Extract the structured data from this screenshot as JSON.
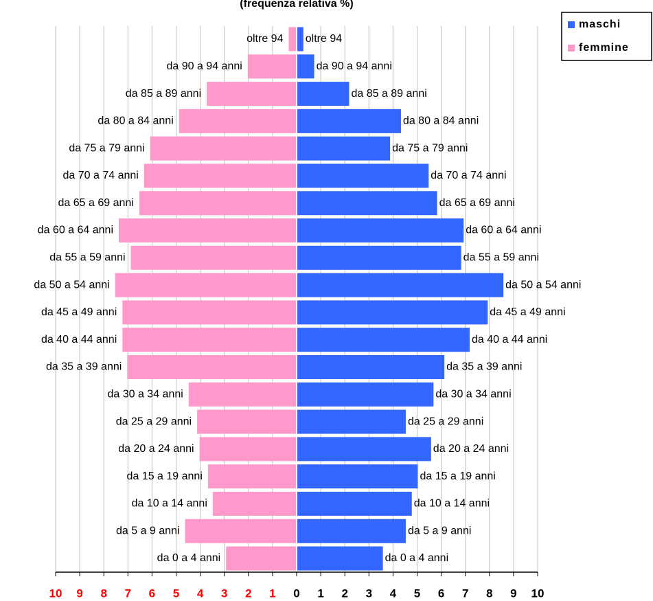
{
  "chart_data": {
    "type": "pyramid",
    "title": "(frequenza relativa %)",
    "categories": [
      "da 0 a 4 anni",
      "da 5 a 9 anni",
      "da 10 a 14 anni",
      "da 15 a 19 anni",
      "da 20 a 24 anni",
      "da 25 a 29 anni",
      "da 30 a 34 anni",
      "da 35 a 39 anni",
      "da 40 a 44 anni",
      "da 45 a 49 anni",
      "da 50 a 54 anni",
      "da 55 a 59 anni",
      "da 60 a 64 anni",
      "da 65 a 69 anni",
      "da 70 a 74 anni",
      "da 75 a 79 anni",
      "da 80 a 84 anni",
      "da 85 a 89 anni",
      "da 90 a 94 anni",
      "oltre 94"
    ],
    "series": [
      {
        "name": "maschi",
        "color": "#3366ff",
        "side": "right",
        "values": [
          3.55,
          4.5,
          4.75,
          5.0,
          5.55,
          4.5,
          5.65,
          6.1,
          7.15,
          7.9,
          8.55,
          6.8,
          6.9,
          5.8,
          5.45,
          3.85,
          4.3,
          2.15,
          0.7,
          0.25
        ]
      },
      {
        "name": "femmine",
        "color": "#ff99cc",
        "side": "left",
        "values": [
          2.9,
          4.6,
          3.45,
          3.65,
          4.0,
          4.1,
          4.45,
          7.0,
          7.2,
          7.2,
          7.5,
          6.85,
          7.35,
          6.5,
          6.3,
          6.05,
          4.85,
          3.7,
          2.0,
          0.3
        ]
      }
    ],
    "xlim": [
      0,
      10
    ],
    "xticks": [
      0,
      1,
      2,
      3,
      4,
      5,
      6,
      7,
      8,
      9,
      10
    ],
    "left_tick_color": "#ff0000",
    "grid": true,
    "legend": "top-right"
  }
}
